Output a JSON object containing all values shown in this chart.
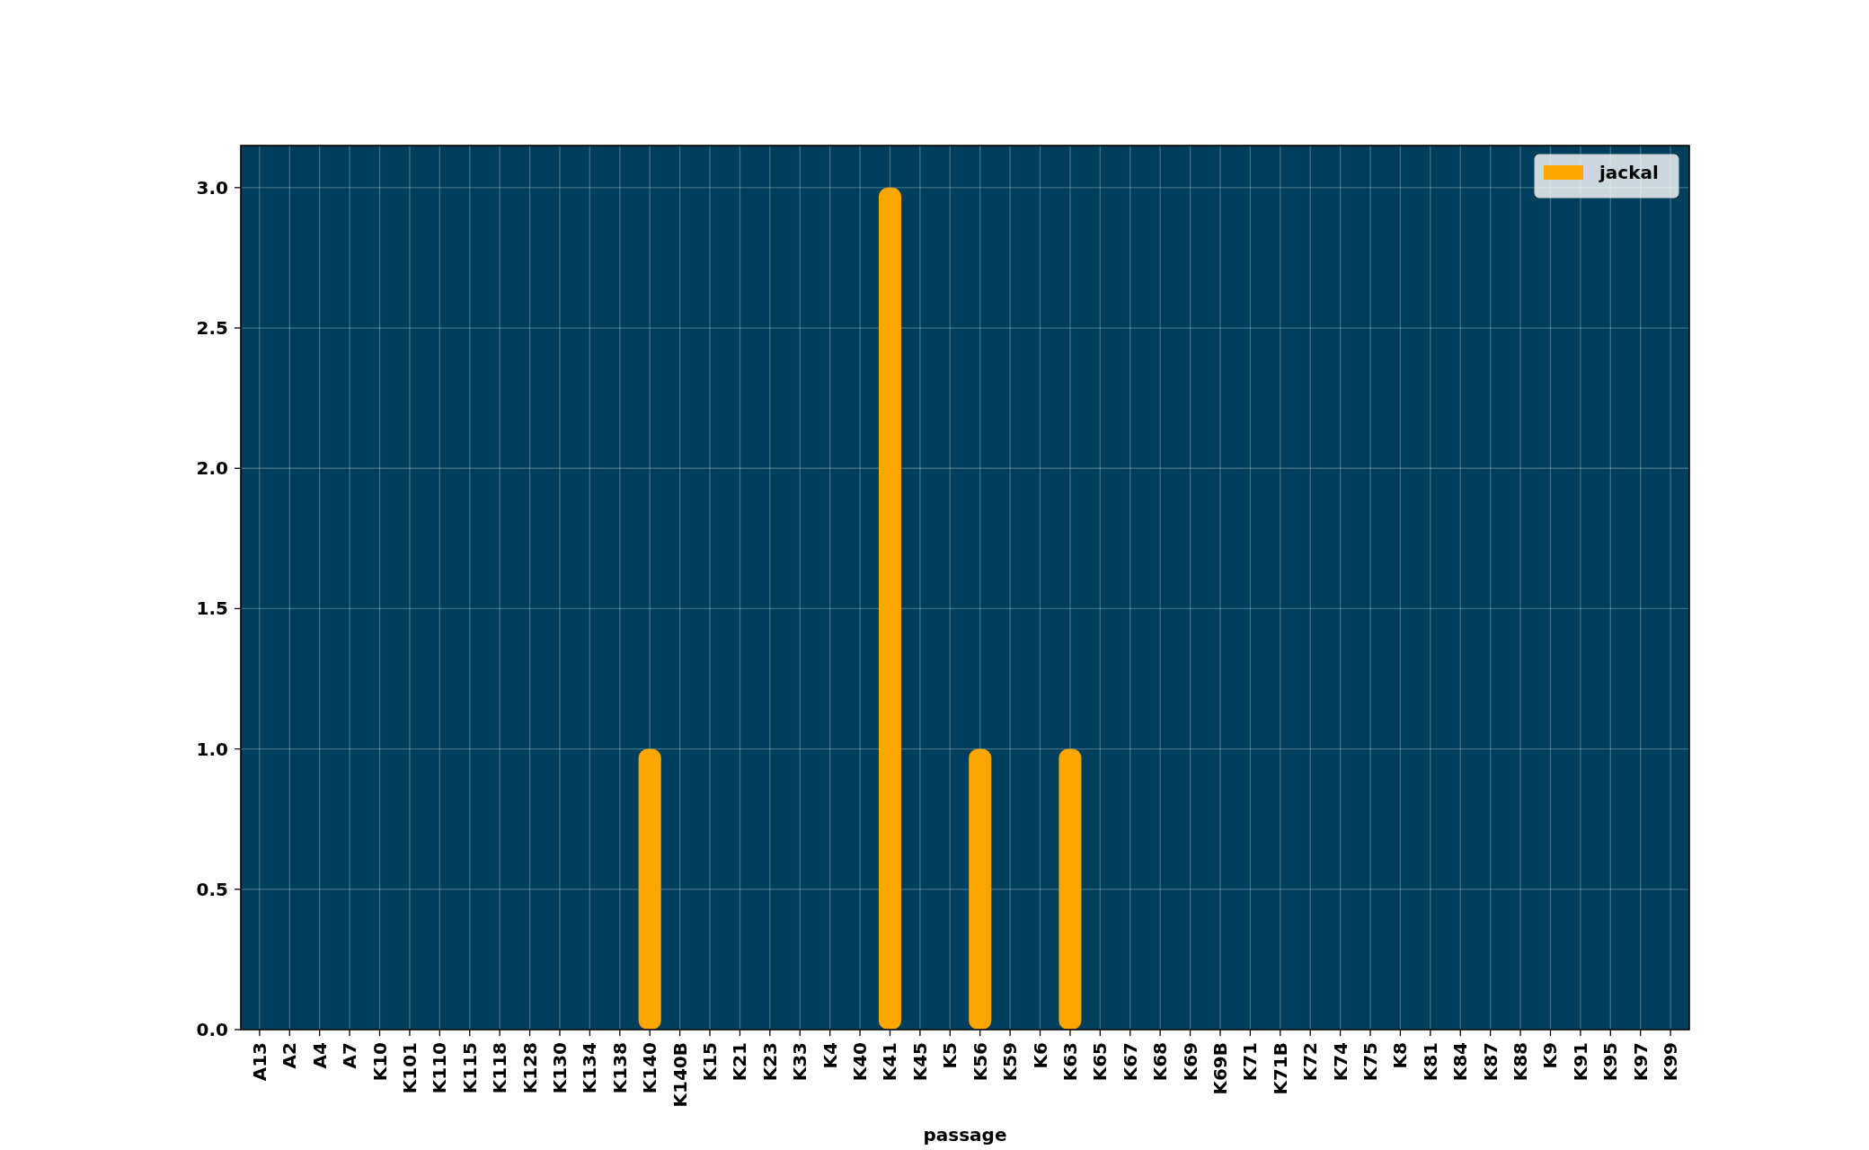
{
  "chart_data": {
    "type": "bar",
    "xlabel": "passage",
    "categories": [
      "A13",
      "A2",
      "A4",
      "A7",
      "K10",
      "K101",
      "K110",
      "K115",
      "K118",
      "K128",
      "K130",
      "K134",
      "K138",
      "K140",
      "K140B",
      "K15",
      "K21",
      "K23",
      "K33",
      "K4",
      "K40",
      "K41",
      "K45",
      "K5",
      "K56",
      "K59",
      "K6",
      "K63",
      "K65",
      "K67",
      "K68",
      "K69",
      "K69B",
      "K71",
      "K71B",
      "K72",
      "K74",
      "K75",
      "K8",
      "K81",
      "K84",
      "K87",
      "K88",
      "K9",
      "K91",
      "K95",
      "K97",
      "K99"
    ],
    "series": [
      {
        "name": "jackal",
        "color": "#ffa600",
        "values": [
          0,
          0,
          0,
          0,
          0,
          0,
          0,
          0,
          0,
          0,
          0,
          0,
          0,
          1,
          0,
          0,
          0,
          0,
          0,
          0,
          0,
          3,
          0,
          0,
          1,
          0,
          0,
          1,
          0,
          0,
          0,
          0,
          0,
          0,
          0,
          0,
          0,
          0,
          0,
          0,
          0,
          0,
          0,
          0,
          0,
          0,
          0,
          0
        ]
      }
    ],
    "ylim": [
      0,
      3.15
    ],
    "yticks": [
      {
        "value": 0,
        "label": "0.0"
      },
      {
        "value": 0.5,
        "label": "0.5"
      },
      {
        "value": 1,
        "label": "1.0"
      },
      {
        "value": 1.5,
        "label": "1.5"
      },
      {
        "value": 2,
        "label": "2.0"
      },
      {
        "value": 2.5,
        "label": "2.5"
      },
      {
        "value": 3,
        "label": "3.0"
      }
    ],
    "grid": true,
    "legend": "top right"
  }
}
